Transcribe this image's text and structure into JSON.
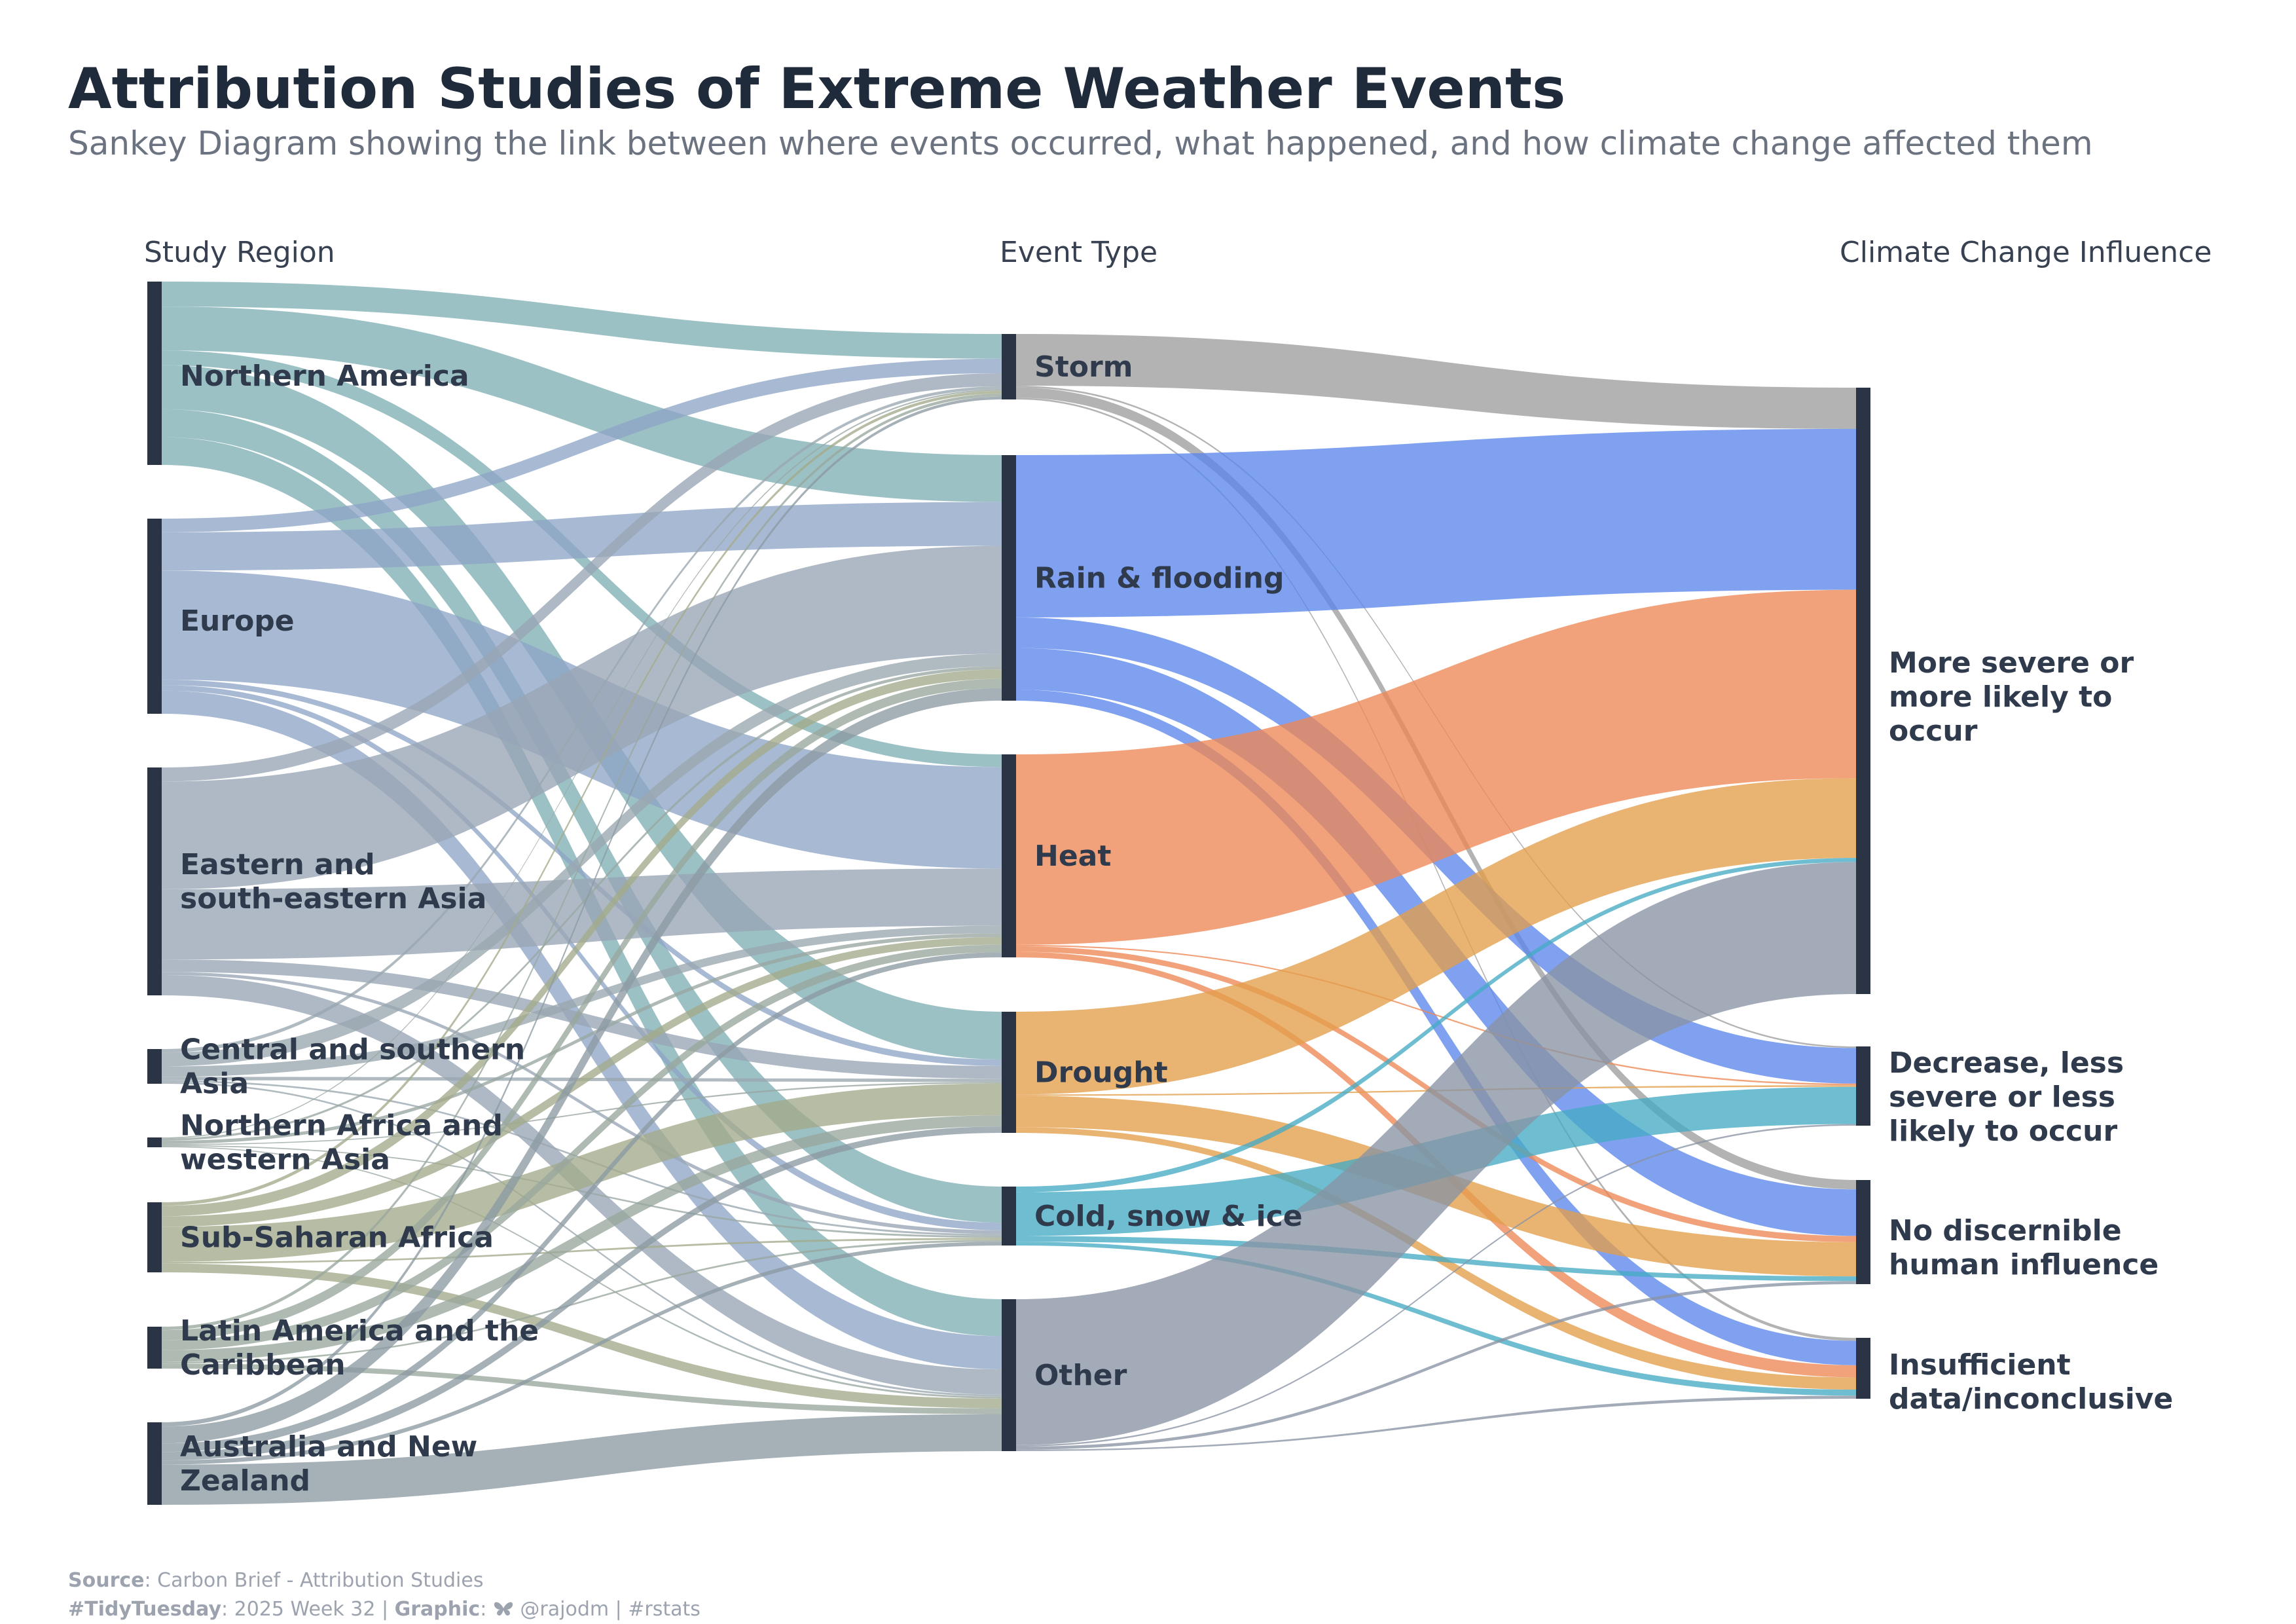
{
  "title": "Attribution Studies of Extreme Weather Events",
  "subtitle": "Sankey Diagram showing the link between where events occurred, what happened, and how climate change affected them",
  "columns": [
    "Study Region",
    "Event Type",
    "Climate Change Influence"
  ],
  "regions": [
    {
      "label": "Northern America",
      "color": "#7fb0b5"
    },
    {
      "label": "Europe",
      "color": "#8ea5c6"
    },
    {
      "label": "Eastern and south-eastern Asia",
      "color": "#98a5b5"
    },
    {
      "label": "Central and southern Asia",
      "color": "#9aa7b0"
    },
    {
      "label": "Northern Africa and western Asia",
      "color": "#98a6a2"
    },
    {
      "label": "Sub-Saharan Africa",
      "color": "#a3aa8a"
    },
    {
      "label": "Latin America and the Caribbean",
      "color": "#98a69c"
    },
    {
      "label": "Australia and New Zealand",
      "color": "#8c9aa3"
    }
  ],
  "events": [
    {
      "label": "Storm",
      "color": "#9e9e9e"
    },
    {
      "label": "Rain & flooding",
      "color": "#5b86ec"
    },
    {
      "label": "Heat",
      "color": "#ee8854"
    },
    {
      "label": "Drought",
      "color": "#e39d4a"
    },
    {
      "label": "Cold, snow & ice",
      "color": "#45aac4"
    },
    {
      "label": "Other",
      "color": "#8894a3"
    }
  ],
  "influences": [
    {
      "label": "More severe or more likely to occur"
    },
    {
      "label": "Decrease, less severe or less likely to occur"
    },
    {
      "label": "No discernible human influence"
    },
    {
      "label": "Insufficient data/inconclusive"
    }
  ],
  "flows_region_event": [
    [
      0,
      0,
      17
    ],
    [
      0,
      1,
      30
    ],
    [
      0,
      2,
      10
    ],
    [
      0,
      3,
      30
    ],
    [
      0,
      4,
      19
    ],
    [
      0,
      5,
      19
    ],
    [
      1,
      0,
      10
    ],
    [
      1,
      1,
      28
    ],
    [
      1,
      2,
      80
    ],
    [
      1,
      3,
      4
    ],
    [
      1,
      4,
      4
    ],
    [
      1,
      5,
      17
    ],
    [
      2,
      0,
      9
    ],
    [
      2,
      1,
      69
    ],
    [
      2,
      2,
      45
    ],
    [
      2,
      3,
      8
    ],
    [
      2,
      4,
      2
    ],
    [
      2,
      5,
      13
    ],
    [
      3,
      0,
      2
    ],
    [
      3,
      1,
      8
    ],
    [
      3,
      2,
      6
    ],
    [
      3,
      3,
      2
    ],
    [
      3,
      4,
      1
    ],
    [
      3,
      5,
      1
    ],
    [
      4,
      0,
      1
    ],
    [
      4,
      1,
      2
    ],
    [
      4,
      2,
      3
    ],
    [
      4,
      3,
      1
    ],
    [
      4,
      4,
      1
    ],
    [
      4,
      5,
      1
    ],
    [
      5,
      0,
      2
    ],
    [
      5,
      1,
      6
    ],
    [
      5,
      2,
      6
    ],
    [
      5,
      3,
      20
    ],
    [
      5,
      4,
      1
    ],
    [
      5,
      5,
      5
    ],
    [
      6,
      0,
      2
    ],
    [
      6,
      1,
      6
    ],
    [
      6,
      2,
      6
    ],
    [
      6,
      3,
      7
    ],
    [
      6,
      4,
      1
    ],
    [
      6,
      5,
      3
    ],
    [
      7,
      0,
      2
    ],
    [
      7,
      1,
      8
    ],
    [
      7,
      2,
      4
    ],
    [
      7,
      3,
      4
    ],
    [
      7,
      4,
      2
    ],
    [
      7,
      5,
      19
    ]
  ],
  "flows_event_influence": [
    [
      0,
      0,
      30
    ],
    [
      0,
      1,
      1
    ],
    [
      0,
      2,
      6
    ],
    [
      0,
      3,
      1
    ],
    [
      1,
      0,
      117
    ],
    [
      1,
      1,
      22
    ],
    [
      1,
      2,
      30
    ],
    [
      1,
      3,
      8
    ],
    [
      2,
      0,
      137
    ],
    [
      2,
      1,
      1
    ],
    [
      2,
      2,
      4
    ],
    [
      2,
      3,
      4
    ],
    [
      3,
      0,
      58
    ],
    [
      3,
      1,
      1
    ],
    [
      3,
      2,
      22
    ],
    [
      3,
      3,
      4
    ],
    [
      4,
      0,
      3
    ],
    [
      4,
      1,
      23
    ],
    [
      4,
      2,
      3
    ],
    [
      4,
      3,
      2
    ],
    [
      5,
      0,
      96
    ],
    [
      5,
      1,
      1
    ],
    [
      5,
      2,
      2
    ],
    [
      5,
      3,
      1
    ]
  ],
  "caption": {
    "source_label": "Source",
    "source": "Carbon Brief - Attribution Studies",
    "tag": "#TidyTuesday",
    "week": "2025 Week 32",
    "graphic_label": "Graphic",
    "handle": "@rajodm",
    "hashtag": "#rstats"
  }
}
